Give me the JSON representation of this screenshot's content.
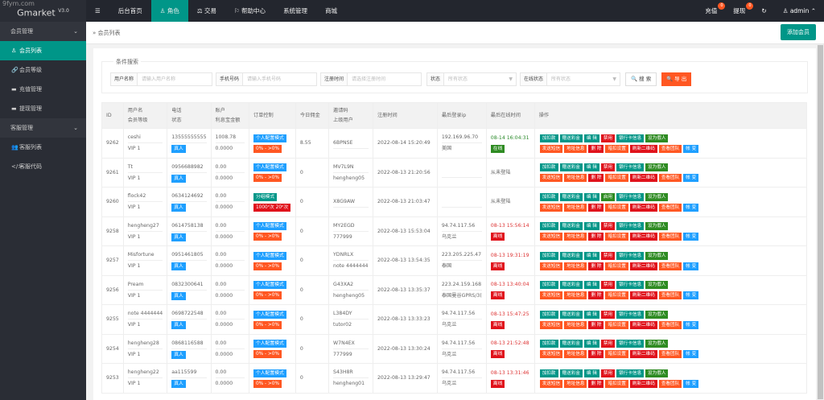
{
  "watermark": "9fym.com",
  "app": {
    "name": "Gmarket",
    "version": "V3.0"
  },
  "topnav": [
    {
      "label": "☰"
    },
    {
      "label": "后台首页"
    },
    {
      "label": "♙ 角色",
      "active": true
    },
    {
      "label": "⚖ 交易"
    },
    {
      "label": "⚐ 帮助中心"
    },
    {
      "label": "系统管理"
    },
    {
      "label": "商城"
    }
  ],
  "topright": {
    "recharge": "充值",
    "recharge_count": "0",
    "withdraw": "提现",
    "withdraw_count": "0",
    "refresh": "↻",
    "user": "♙ admin ⌃"
  },
  "sidebar": [
    {
      "label": "会员管理",
      "group": true,
      "chev": "⌄"
    },
    {
      "label": "会员列表",
      "icon": "♙",
      "active": true
    },
    {
      "label": "会员等级",
      "icon": "🔗"
    },
    {
      "label": "充值管理",
      "icon": "▬"
    },
    {
      "label": "提现管理",
      "icon": "▬"
    },
    {
      "label": "客服管理",
      "group": true,
      "chev": "⌄"
    },
    {
      "label": "客服列表",
      "icon": "👥"
    },
    {
      "label": "客服代码",
      "icon": "</>"
    }
  ],
  "breadcrumb": "» 会员列表",
  "add_button": "添加会员",
  "search": {
    "legend": "条件搜索",
    "username_label": "用户名称",
    "username_ph": "请输入用户名称",
    "phone_label": "手机号码",
    "phone_ph": "请输入手机号码",
    "regtime_label": "注册时间",
    "regtime_ph": "请选择注册时间",
    "status_label": "状态",
    "status_value": "所有状态",
    "online_label": "在线状态",
    "online_value": "所有状态",
    "search_btn": "🔍 搜 索",
    "export_btn": "🔍 导 出"
  },
  "colors": {
    "teal": "#009688",
    "blue": "#1E9FFF",
    "orange": "#FF5722",
    "red": "#e0121b",
    "green": "#2e8b22"
  },
  "table": {
    "headers": [
      [
        "ID"
      ],
      [
        "用户名",
        "会员等级"
      ],
      [
        "电话",
        "状态"
      ],
      [
        "账户",
        "利息宝金额"
      ],
      [
        "订单控制"
      ],
      [
        "今日佣金"
      ],
      [
        "邀请码",
        "上级用户"
      ],
      [
        "注册时间"
      ],
      [
        "最后登录ip"
      ],
      [
        "最后在线时间"
      ],
      [
        "操作"
      ]
    ],
    "ops_row1": [
      "加扣款",
      "赠送彩金",
      "编 辑",
      "禁用",
      "银行卡信息",
      "设为假人"
    ],
    "ops_row2": [
      "发送短信",
      "地址信息",
      "删 除",
      "暗扣设置",
      "刷新二维码",
      "查看团队",
      "帐 变"
    ],
    "rows": [
      {
        "id": "9262",
        "user": "ceshi",
        "level": "VIP 1",
        "phone": "13555555555",
        "status": "真人",
        "balance": "1008.78",
        "interest": "0.0000",
        "mode": "个人配置模式",
        "mode_type": "blue",
        "ctrl": "0% - >0%",
        "ctrl_type": "orange",
        "commission": "8.55",
        "invite": "6BPNSE",
        "parent": "",
        "regtime": "2022-08-14 15:20:49",
        "ip": "192.169.96.70",
        "loc": "美国",
        "last": "08-14 16:04:31",
        "online": "在线",
        "is_online": true,
        "toggle": "禁用"
      },
      {
        "id": "9261",
        "user": "Tt",
        "level": "VIP 1",
        "phone": "0956688982",
        "status": "真人",
        "balance": "0.00",
        "interest": "0.0000",
        "mode": "个人配置模式",
        "mode_type": "blue",
        "ctrl": "0% - >0%",
        "ctrl_type": "orange",
        "commission": "0",
        "invite": "MV7L9N",
        "parent": "hengheng05",
        "regtime": "2022-08-13 21:20:56",
        "ip": "",
        "loc": "",
        "last": "从未登陆",
        "online": "",
        "is_online": null,
        "toggle": "禁用"
      },
      {
        "id": "9260",
        "user": "flock42",
        "level": "VIP 1",
        "phone": "0634124692",
        "status": "真人",
        "balance": "0.00",
        "interest": "0.0000",
        "mode": "分组模式",
        "mode_type": "teal",
        "ctrl": "1000ⁿ次 20ⁿ次",
        "ctrl_type": "red",
        "commission": "0",
        "invite": "X8G9AW",
        "parent": "",
        "regtime": "2022-08-13 21:03:47",
        "ip": "",
        "loc": "",
        "last": "从未登陆",
        "online": "",
        "is_online": null,
        "toggle": "启用"
      },
      {
        "id": "9258",
        "user": "hengheng27",
        "level": "VIP 1",
        "phone": "0614758138",
        "status": "真人",
        "balance": "0.00",
        "interest": "0.0000",
        "mode": "个人配置模式",
        "mode_type": "blue",
        "ctrl": "0% - >0%",
        "ctrl_type": "orange",
        "commission": "0",
        "invite": "MY2EGD",
        "parent": "777999",
        "regtime": "2022-08-13 15:53:04",
        "ip": "94.74.117.56",
        "loc": "乌克兰",
        "last": "08-13 15:56:14",
        "online": "离线",
        "is_online": false,
        "toggle": "禁用"
      },
      {
        "id": "9257",
        "user": "Misfortune",
        "level": "VIP 1",
        "phone": "0951461805",
        "status": "真人",
        "balance": "0.00",
        "interest": "0.0000",
        "mode": "个人配置模式",
        "mode_type": "blue",
        "ctrl": "0% - >0%",
        "ctrl_type": "orange",
        "commission": "0",
        "invite": "YDNRLX",
        "parent": "note 4444444",
        "regtime": "2022-08-13 13:54:35",
        "ip": "223.205.225.47",
        "loc": "泰国",
        "last": "08-13 19:31:19",
        "online": "离线",
        "is_online": false,
        "toggle": "禁用"
      },
      {
        "id": "9256",
        "user": "Pream",
        "level": "VIP 1",
        "phone": "0832300641",
        "status": "真人",
        "balance": "0.00",
        "interest": "0.0000",
        "mode": "个人配置模式",
        "mode_type": "blue",
        "ctrl": "0% - >0%",
        "ctrl_type": "orange",
        "commission": "0",
        "invite": "G43XA2",
        "parent": "hengheng05",
        "regtime": "2022-08-13 13:35:37",
        "ip": "223.24.159.168",
        "loc": "泰国曼谷GPRS/3(",
        "last": "08-13 13:40:04",
        "online": "离线",
        "is_online": false,
        "toggle": "禁用"
      },
      {
        "id": "9255",
        "user": "note 4444444",
        "level": "VIP 1",
        "phone": "0698722548",
        "status": "真人",
        "balance": "0.00",
        "interest": "0.0000",
        "mode": "个人配置模式",
        "mode_type": "blue",
        "ctrl": "0% - >0%",
        "ctrl_type": "orange",
        "commission": "0",
        "invite": "L384DY",
        "parent": "tutor02",
        "regtime": "2022-08-13 13:33:23",
        "ip": "94.74.117.56",
        "loc": "乌克兰",
        "last": "08-13 15:47:25",
        "online": "离线",
        "is_online": false,
        "toggle": "禁用"
      },
      {
        "id": "9254",
        "user": "hengheng28",
        "level": "VIP 1",
        "phone": "0868116588",
        "status": "真人",
        "balance": "0.00",
        "interest": "0.0000",
        "mode": "个人配置模式",
        "mode_type": "blue",
        "ctrl": "0% - >0%",
        "ctrl_type": "orange",
        "commission": "0",
        "invite": "W7N4EX",
        "parent": "777999",
        "regtime": "2022-08-13 13:30:24",
        "ip": "94.74.117.56",
        "loc": "乌克兰",
        "last": "08-13 21:52:48",
        "online": "离线",
        "is_online": false,
        "toggle": "禁用"
      },
      {
        "id": "9253",
        "user": "hengheng22",
        "level": "VIP 1",
        "phone": "aa115599",
        "status": "真人",
        "balance": "0.00",
        "interest": "0.0000",
        "mode": "个人配置模式",
        "mode_type": "blue",
        "ctrl": "0% - >0%",
        "ctrl_type": "orange",
        "commission": "0",
        "invite": "S43H8R",
        "parent": "hengheng01",
        "regtime": "2022-08-13 13:29:47",
        "ip": "94.74.117.56",
        "loc": "乌克兰",
        "last": "08-13 13:31:46",
        "online": "离线",
        "is_online": false,
        "toggle": "禁用"
      }
    ]
  }
}
